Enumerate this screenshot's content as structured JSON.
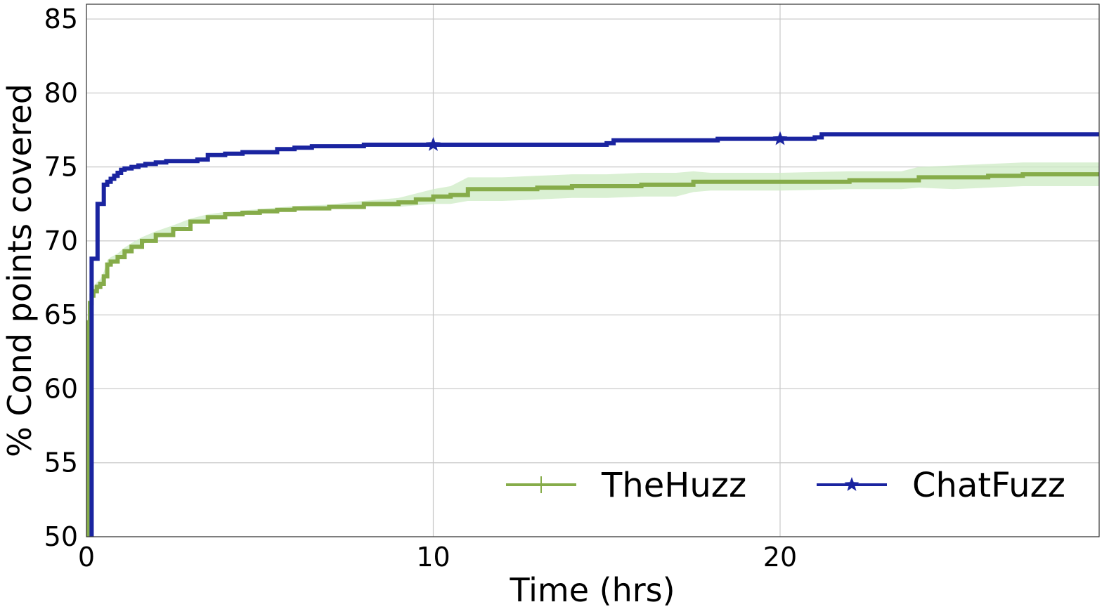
{
  "chart_data": {
    "type": "line",
    "xlabel": "Time (hrs)",
    "ylabel": "% Cond points covered",
    "xlim": [
      0,
      29.2
    ],
    "ylim": [
      50,
      86
    ],
    "xticks": [
      0,
      10,
      20
    ],
    "yticks": [
      50,
      55,
      60,
      65,
      70,
      75,
      80,
      85
    ],
    "grid": true,
    "legend_position": "lower-right",
    "series": [
      {
        "name": "TheHuzz",
        "color": "#86ac4a",
        "band_color": "#cdebc4",
        "marker": "plus",
        "x": [
          0,
          0.03,
          0.06,
          0.1,
          0.15,
          0.2,
          0.3,
          0.4,
          0.5,
          0.6,
          0.7,
          0.9,
          1.1,
          1.3,
          1.6,
          2.0,
          2.5,
          3.0,
          3.5,
          4.0,
          4.5,
          5.0,
          5.5,
          6.0,
          7.0,
          8.0,
          9.0,
          9.5,
          10.0,
          10.5,
          11.0,
          12.0,
          13.0,
          14.0,
          15.0,
          16.0,
          17.0,
          17.5,
          18.0,
          20.0,
          22.0,
          23.5,
          24.0,
          25.0,
          26.0,
          27.0,
          28.0,
          29.2
        ],
        "y": [
          50,
          60,
          64.5,
          65.8,
          66.3,
          66.6,
          66.9,
          67.1,
          67.6,
          68.4,
          68.6,
          68.9,
          69.3,
          69.6,
          70.0,
          70.4,
          70.8,
          71.3,
          71.6,
          71.8,
          71.9,
          72.0,
          72.1,
          72.2,
          72.3,
          72.5,
          72.6,
          72.8,
          73.0,
          73.1,
          73.5,
          73.5,
          73.6,
          73.7,
          73.7,
          73.8,
          73.8,
          74.0,
          74.0,
          74.0,
          74.1,
          74.1,
          74.3,
          74.3,
          74.4,
          74.5,
          74.5,
          74.5
        ],
        "band_spread": [
          0,
          0,
          0.3,
          0.3,
          0.3,
          0.3,
          0.3,
          0.3,
          0.3,
          0.3,
          0.3,
          0.25,
          0.25,
          0.25,
          0.25,
          0.25,
          0.25,
          0.2,
          0.2,
          0.15,
          0.15,
          0.15,
          0.15,
          0.15,
          0.15,
          0.2,
          0.3,
          0.4,
          0.5,
          0.6,
          0.8,
          0.8,
          0.8,
          0.8,
          0.8,
          0.8,
          0.8,
          0.7,
          0.6,
          0.6,
          0.6,
          0.6,
          0.7,
          0.8,
          0.8,
          0.8,
          0.8,
          0.8
        ]
      },
      {
        "name": "ChatFuzz",
        "color": "#1a24a0",
        "marker": "star",
        "marker_x": [
          10,
          20
        ],
        "x": [
          0.15,
          0.15,
          0.2,
          0.3,
          0.32,
          0.45,
          0.5,
          0.6,
          0.7,
          0.8,
          0.9,
          1.0,
          1.1,
          1.3,
          1.5,
          1.7,
          2.0,
          2.3,
          2.7,
          3.2,
          3.5,
          4.0,
          4.5,
          5.0,
          5.5,
          6.0,
          6.5,
          7.0,
          8.0,
          9.0,
          10.0,
          11.0,
          12.0,
          13.0,
          14.0,
          15.0,
          15.2,
          16.0,
          17.0,
          18.0,
          18.2,
          19.0,
          20.0,
          20.5,
          21.0,
          21.2,
          23.0,
          25.0,
          27.0,
          29.2
        ],
        "y": [
          50,
          68.8,
          68.8,
          68.8,
          72.5,
          72.5,
          73.8,
          74.0,
          74.2,
          74.4,
          74.6,
          74.8,
          74.9,
          75.0,
          75.1,
          75.2,
          75.3,
          75.4,
          75.4,
          75.5,
          75.8,
          75.9,
          76.0,
          76.0,
          76.2,
          76.3,
          76.4,
          76.4,
          76.5,
          76.5,
          76.5,
          76.5,
          76.5,
          76.5,
          76.5,
          76.6,
          76.8,
          76.8,
          76.8,
          76.8,
          76.9,
          76.9,
          76.9,
          76.9,
          77.0,
          77.2,
          77.2,
          77.2,
          77.2,
          77.2
        ]
      }
    ]
  }
}
